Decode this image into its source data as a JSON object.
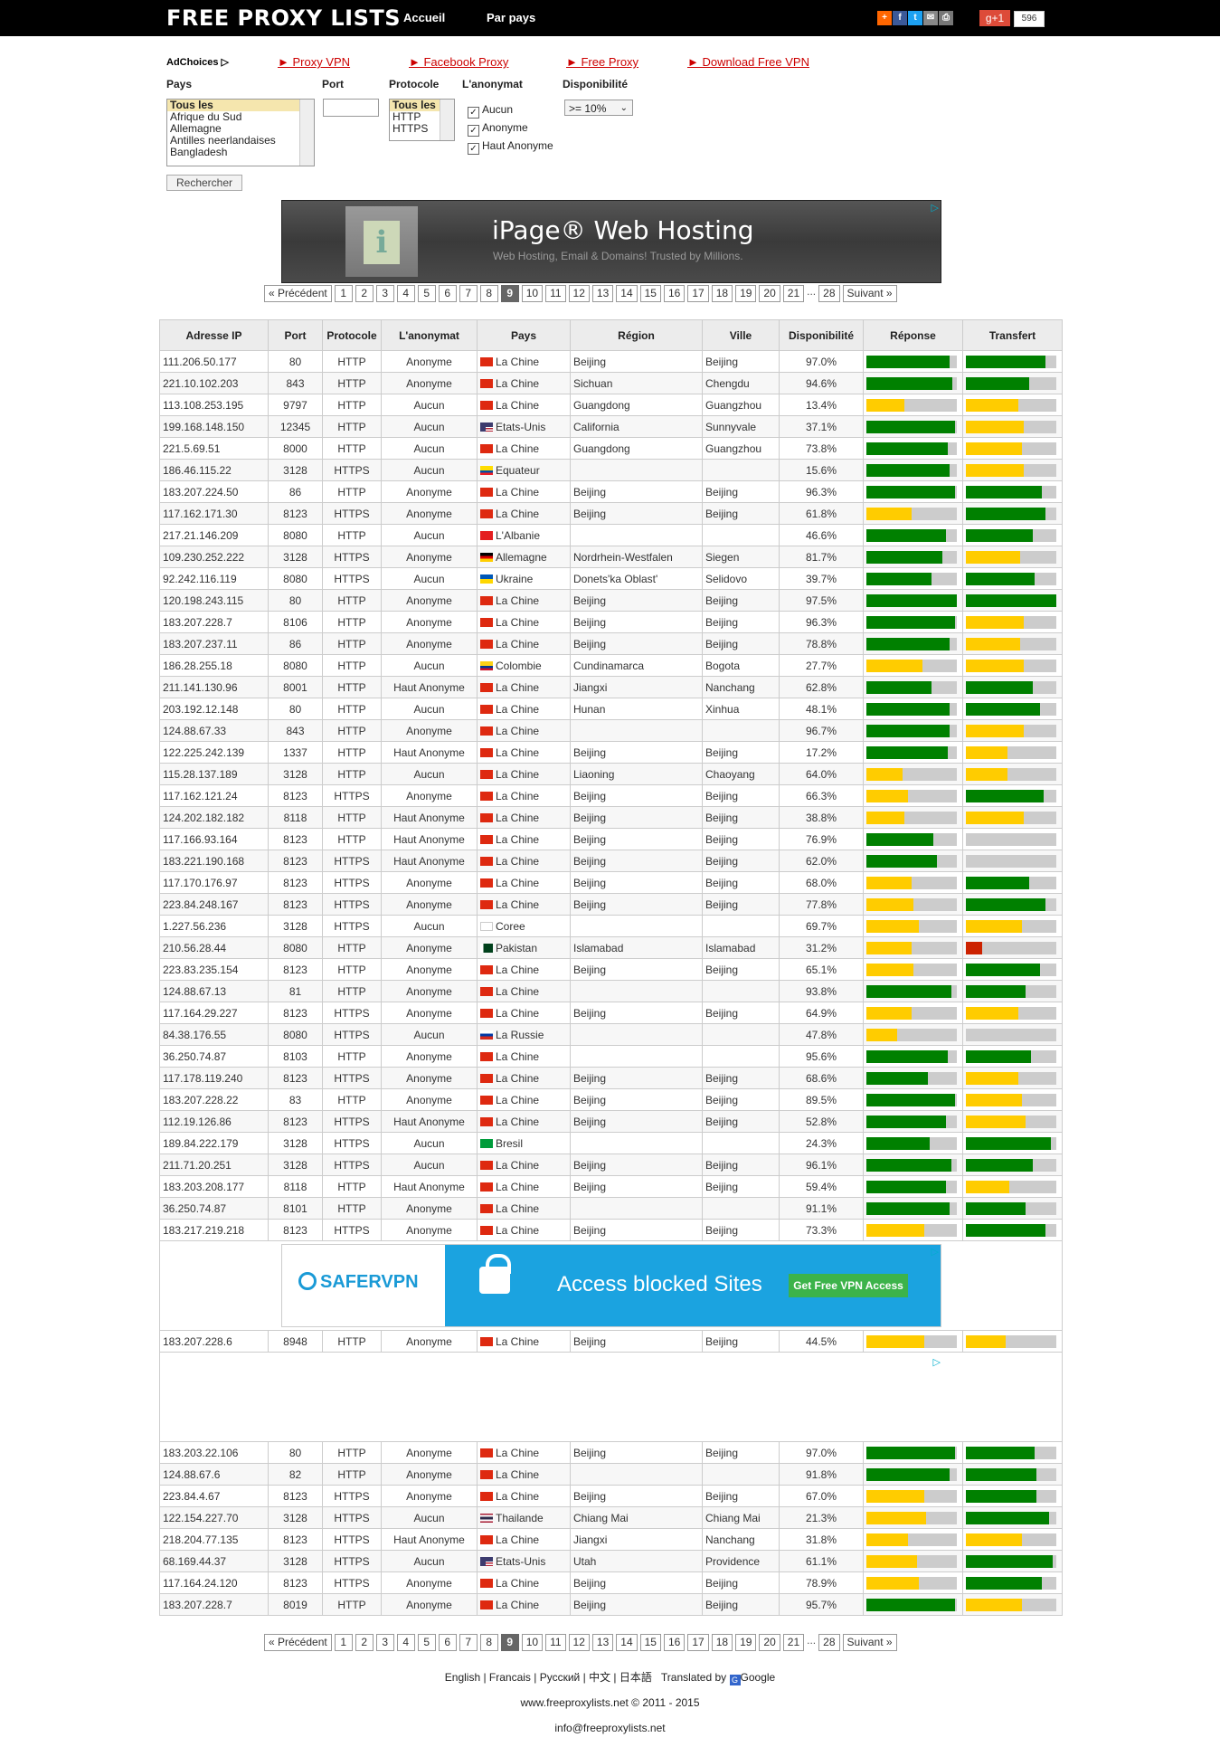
{
  "header": {
    "logo": "FREE PROXY LISTS",
    "nav": [
      "Accueil",
      "Par pays"
    ],
    "share_icons": [
      "plus-icon",
      "facebook-icon",
      "twitter-icon",
      "email-icon",
      "print-icon"
    ],
    "gplus_label": "g+1",
    "gplus_count": "596"
  },
  "ad_links": {
    "adchoices": "AdChoices ▷",
    "links": [
      "► Proxy VPN",
      "► Facebook Proxy",
      "► Free Proxy",
      "► Download Free VPN"
    ]
  },
  "filters": {
    "pays_label": "Pays",
    "port_label": "Port",
    "protocole_label": "Protocole",
    "anonymat_label": "L'anonymat",
    "dispo_label": "Disponibilité",
    "pays_options": [
      "Tous les",
      "Afrique du Sud",
      "Allemagne",
      "Antilles neerlandaises",
      "Bangladesh"
    ],
    "protocole_options": [
      "Tous les",
      "HTTP",
      "HTTPS"
    ],
    "anonymat_options": [
      "Aucun",
      "Anonyme",
      "Haut Anonyme"
    ],
    "dispo_value": ">= 10%",
    "search_button": "Rechercher"
  },
  "ads": {
    "ipage_title": "iPage® Web Hosting",
    "ipage_sub": "Web Hosting, Email & Domains! Trusted by Millions.",
    "safervpn_logo": "SAFERVPN",
    "safervpn_text": "Access blocked Sites",
    "safervpn_button": "Get Free VPN Access"
  },
  "pager": {
    "prev": "« Précédent",
    "pages": [
      "1",
      "2",
      "3",
      "4",
      "5",
      "6",
      "7",
      "8",
      "9",
      "10",
      "11",
      "12",
      "13",
      "14",
      "15",
      "16",
      "17",
      "18",
      "19",
      "20",
      "21"
    ],
    "current": "9",
    "dots": "...",
    "last": "28",
    "next": "Suivant »"
  },
  "table": {
    "headers": [
      "Adresse IP",
      "Port",
      "Protocole",
      "L'anonymat",
      "Pays",
      "Région",
      "Ville",
      "Disponibilité",
      "Réponse",
      "Transfert"
    ],
    "colors": {
      "green": "#008000",
      "yellow": "#ffcc00",
      "red": "#cc2200",
      "grey": "#cccccc"
    },
    "rows": [
      [
        "111.206.50.177",
        "80",
        "HTTP",
        "Anonyme",
        "cn",
        "La Chine",
        "Beijing",
        "Beijing",
        "97.0%",
        "g92",
        "g88"
      ],
      [
        "221.10.102.203",
        "843",
        "HTTP",
        "Anonyme",
        "cn",
        "La Chine",
        "Sichuan",
        "Chengdu",
        "94.6%",
        "g95",
        "g70"
      ],
      [
        "113.108.253.195",
        "9797",
        "HTTP",
        "Aucun",
        "cn",
        "La Chine",
        "Guangdong",
        "Guangzhou",
        "13.4%",
        "y42",
        "y58"
      ],
      [
        "199.168.148.150",
        "12345",
        "HTTP",
        "Aucun",
        "us",
        "Etats-Unis",
        "California",
        "Sunnyvale",
        "37.1%",
        "g98",
        "y64"
      ],
      [
        "221.5.69.51",
        "8000",
        "HTTP",
        "Aucun",
        "cn",
        "La Chine",
        "Guangdong",
        "Guangzhou",
        "73.8%",
        "g90",
        "y62"
      ],
      [
        "186.46.115.22",
        "3128",
        "HTTPS",
        "Aucun",
        "ec",
        "Equateur",
        "",
        "",
        "15.6%",
        "g92",
        "y64"
      ],
      [
        "183.207.224.50",
        "86",
        "HTTP",
        "Anonyme",
        "cn",
        "La Chine",
        "Beijing",
        "Beijing",
        "96.3%",
        "g98",
        "g84"
      ],
      [
        "117.162.171.30",
        "8123",
        "HTTPS",
        "Anonyme",
        "cn",
        "La Chine",
        "Beijing",
        "Beijing",
        "61.8%",
        "y50",
        "g88"
      ],
      [
        "217.21.146.209",
        "8080",
        "HTTP",
        "Aucun",
        "al",
        "L'Albanie",
        "",
        "",
        "46.6%",
        "g88",
        "g74"
      ],
      [
        "109.230.252.222",
        "3128",
        "HTTPS",
        "Anonyme",
        "de",
        "Allemagne",
        "Nordrhein-Westfalen",
        "Siegen",
        "81.7%",
        "g84",
        "y60"
      ],
      [
        "92.242.116.119",
        "8080",
        "HTTPS",
        "Aucun",
        "ua",
        "Ukraine",
        "Donets'ka Oblast'",
        "Selidovo",
        "39.7%",
        "g72",
        "g76"
      ],
      [
        "120.198.243.115",
        "80",
        "HTTP",
        "Anonyme",
        "cn",
        "La Chine",
        "Beijing",
        "Beijing",
        "97.5%",
        "g100",
        "g100"
      ],
      [
        "183.207.228.7",
        "8106",
        "HTTP",
        "Anonyme",
        "cn",
        "La Chine",
        "Beijing",
        "Beijing",
        "96.3%",
        "g98",
        "y64"
      ],
      [
        "183.207.237.11",
        "86",
        "HTTP",
        "Anonyme",
        "cn",
        "La Chine",
        "Beijing",
        "Beijing",
        "78.8%",
        "g92",
        "y60"
      ],
      [
        "186.28.255.18",
        "8080",
        "HTTP",
        "Aucun",
        "co",
        "Colombie",
        "Cundinamarca",
        "Bogota",
        "27.7%",
        "y62",
        "y64"
      ],
      [
        "211.141.130.96",
        "8001",
        "HTTP",
        "Haut Anonyme",
        "cn",
        "La Chine",
        "Jiangxi",
        "Nanchang",
        "62.8%",
        "g72",
        "g74"
      ],
      [
        "203.192.12.148",
        "80",
        "HTTP",
        "Aucun",
        "cn",
        "La Chine",
        "Hunan",
        "Xinhua",
        "48.1%",
        "g92",
        "g82"
      ],
      [
        "124.88.67.33",
        "843",
        "HTTP",
        "Anonyme",
        "cn",
        "La Chine",
        "",
        "",
        "96.7%",
        "g92",
        "y64"
      ],
      [
        "122.225.242.139",
        "1337",
        "HTTP",
        "Haut Anonyme",
        "cn",
        "La Chine",
        "Beijing",
        "Beijing",
        "17.2%",
        "g90",
        "y46"
      ],
      [
        "115.28.137.189",
        "3128",
        "HTTP",
        "Aucun",
        "cn",
        "La Chine",
        "Liaoning",
        "Chaoyang",
        "64.0%",
        "y40",
        "y46"
      ],
      [
        "117.162.121.24",
        "8123",
        "HTTPS",
        "Anonyme",
        "cn",
        "La Chine",
        "Beijing",
        "Beijing",
        "66.3%",
        "y46",
        "g86"
      ],
      [
        "124.202.182.182",
        "8118",
        "HTTP",
        "Haut Anonyme",
        "cn",
        "La Chine",
        "Beijing",
        "Beijing",
        "38.8%",
        "y42",
        "y64"
      ],
      [
        "117.166.93.164",
        "8123",
        "HTTP",
        "Haut Anonyme",
        "cn",
        "La Chine",
        "Beijing",
        "Beijing",
        "76.9%",
        "g74",
        "g0"
      ],
      [
        "183.221.190.168",
        "8123",
        "HTTPS",
        "Haut Anonyme",
        "cn",
        "La Chine",
        "Beijing",
        "Beijing",
        "62.0%",
        "g78",
        "g0"
      ],
      [
        "117.170.176.97",
        "8123",
        "HTTPS",
        "Anonyme",
        "cn",
        "La Chine",
        "Beijing",
        "Beijing",
        "68.0%",
        "y50",
        "g70"
      ],
      [
        "223.84.248.167",
        "8123",
        "HTTPS",
        "Anonyme",
        "cn",
        "La Chine",
        "Beijing",
        "Beijing",
        "77.8%",
        "y52",
        "g88"
      ],
      [
        "1.227.56.236",
        "3128",
        "HTTPS",
        "Aucun",
        "kr",
        "Coree",
        "",
        "",
        "69.7%",
        "y58",
        "y62"
      ],
      [
        "210.56.28.44",
        "8080",
        "HTTP",
        "Anonyme",
        "pk",
        "Pakistan",
        "Islamabad",
        "Islamabad",
        "31.2%",
        "y50",
        "r18"
      ],
      [
        "223.83.235.154",
        "8123",
        "HTTP",
        "Anonyme",
        "cn",
        "La Chine",
        "Beijing",
        "Beijing",
        "65.1%",
        "y52",
        "g82"
      ],
      [
        "124.88.67.13",
        "81",
        "HTTP",
        "Anonyme",
        "cn",
        "La Chine",
        "",
        "",
        "93.8%",
        "g94",
        "g66"
      ],
      [
        "117.164.29.227",
        "8123",
        "HTTPS",
        "Anonyme",
        "cn",
        "La Chine",
        "Beijing",
        "Beijing",
        "64.9%",
        "y50",
        "y58"
      ],
      [
        "84.38.176.55",
        "8080",
        "HTTPS",
        "Aucun",
        "ru",
        "La Russie",
        "",
        "",
        "47.8%",
        "y34",
        "g0"
      ],
      [
        "36.250.74.87",
        "8103",
        "HTTP",
        "Anonyme",
        "cn",
        "La Chine",
        "",
        "",
        "95.6%",
        "g90",
        "g72"
      ],
      [
        "117.178.119.240",
        "8123",
        "HTTPS",
        "Anonyme",
        "cn",
        "La Chine",
        "Beijing",
        "Beijing",
        "68.6%",
        "g68",
        "y58"
      ],
      [
        "183.207.228.22",
        "83",
        "HTTP",
        "Anonyme",
        "cn",
        "La Chine",
        "Beijing",
        "Beijing",
        "89.5%",
        "g98",
        "y62"
      ],
      [
        "112.19.126.86",
        "8123",
        "HTTPS",
        "Haut Anonyme",
        "cn",
        "La Chine",
        "Beijing",
        "Beijing",
        "52.8%",
        "g88",
        "y66"
      ],
      [
        "189.84.222.179",
        "3128",
        "HTTPS",
        "Aucun",
        "br",
        "Bresil",
        "",
        "",
        "24.3%",
        "g70",
        "g94"
      ],
      [
        "211.71.20.251",
        "3128",
        "HTTPS",
        "Aucun",
        "cn",
        "La Chine",
        "Beijing",
        "Beijing",
        "96.1%",
        "g94",
        "g74"
      ],
      [
        "183.203.208.177",
        "8118",
        "HTTP",
        "Haut Anonyme",
        "cn",
        "La Chine",
        "Beijing",
        "Beijing",
        "59.4%",
        "g88",
        "y48"
      ],
      [
        "36.250.74.87",
        "8101",
        "HTTP",
        "Anonyme",
        "cn",
        "La Chine",
        "",
        "",
        "91.1%",
        "g92",
        "g66"
      ],
      [
        "183.217.219.218",
        "8123",
        "HTTPS",
        "Anonyme",
        "cn",
        "La Chine",
        "Beijing",
        "Beijing",
        "73.3%",
        "y64",
        "g88"
      ]
    ],
    "row_after_ad1": [
      "183.207.228.6",
      "8948",
      "HTTP",
      "Anonyme",
      "cn",
      "La Chine",
      "Beijing",
      "Beijing",
      "44.5%",
      "y64",
      "y44"
    ],
    "rows_after_ad2": [
      [
        "183.203.22.106",
        "80",
        "HTTP",
        "Anonyme",
        "cn",
        "La Chine",
        "Beijing",
        "Beijing",
        "97.0%",
        "g98",
        "g76"
      ],
      [
        "124.88.67.6",
        "82",
        "HTTP",
        "Anonyme",
        "cn",
        "La Chine",
        "",
        "",
        "91.8%",
        "g92",
        "g78"
      ],
      [
        "223.84.4.67",
        "8123",
        "HTTPS",
        "Anonyme",
        "cn",
        "La Chine",
        "Beijing",
        "Beijing",
        "67.0%",
        "y64",
        "g78"
      ],
      [
        "122.154.227.70",
        "3128",
        "HTTPS",
        "Aucun",
        "th",
        "Thailande",
        "Chiang Mai",
        "Chiang Mai",
        "21.3%",
        "y66",
        "g92"
      ],
      [
        "218.204.77.135",
        "8123",
        "HTTPS",
        "Haut Anonyme",
        "cn",
        "La Chine",
        "Jiangxi",
        "Nanchang",
        "31.8%",
        "y46",
        "y62"
      ],
      [
        "68.169.44.37",
        "3128",
        "HTTPS",
        "Aucun",
        "us",
        "Etats-Unis",
        "Utah",
        "Providence",
        "61.1%",
        "y56",
        "g96"
      ],
      [
        "117.164.24.120",
        "8123",
        "HTTPS",
        "Anonyme",
        "cn",
        "La Chine",
        "Beijing",
        "Beijing",
        "78.9%",
        "y58",
        "g84"
      ],
      [
        "183.207.228.7",
        "8019",
        "HTTP",
        "Anonyme",
        "cn",
        "La Chine",
        "Beijing",
        "Beijing",
        "95.7%",
        "g98",
        "y62"
      ]
    ]
  },
  "footer": {
    "languages": [
      "English",
      "Francais",
      "Русский",
      "中文",
      "日本語"
    ],
    "translated": "Translated by",
    "google": "Google",
    "copyright": "www.freeproxylists.net © 2011 - 2015",
    "email": "info@freeproxylists.net"
  }
}
